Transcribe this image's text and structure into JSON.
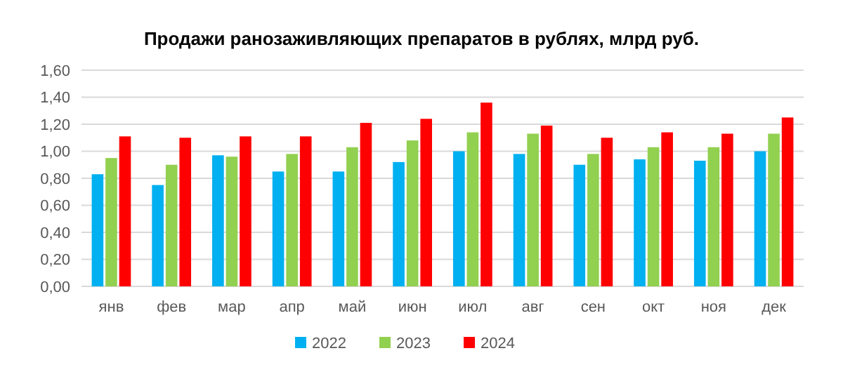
{
  "chart_data": {
    "type": "bar",
    "title": "Продажи ранозаживляющих препаратов в рублях, млрд руб.",
    "categories": [
      "янв",
      "фев",
      "мар",
      "апр",
      "май",
      "июн",
      "июл",
      "авг",
      "сен",
      "окт",
      "ноя",
      "дек"
    ],
    "series": [
      {
        "name": "2022",
        "color": "#00b0f0",
        "values": [
          0.83,
          0.75,
          0.97,
          0.85,
          0.85,
          0.92,
          1.0,
          0.98,
          0.9,
          0.94,
          0.93,
          1.0
        ]
      },
      {
        "name": "2023",
        "color": "#92d050",
        "values": [
          0.95,
          0.9,
          0.96,
          0.98,
          1.03,
          1.08,
          1.14,
          1.13,
          0.98,
          1.03,
          1.03,
          1.13
        ]
      },
      {
        "name": "2024",
        "color": "#ff0000",
        "values": [
          1.11,
          1.1,
          1.11,
          1.11,
          1.21,
          1.24,
          1.36,
          1.19,
          1.1,
          1.14,
          1.13,
          1.25
        ]
      }
    ],
    "ylim": [
      0,
      1.6
    ],
    "yticks": [
      {
        "value": 0,
        "label": "0,00"
      },
      {
        "value": 0.2,
        "label": "0,20"
      },
      {
        "value": 0.4,
        "label": "0,40"
      },
      {
        "value": 0.6,
        "label": "0,60"
      },
      {
        "value": 0.8,
        "label": "0,80"
      },
      {
        "value": 1,
        "label": "1,00"
      },
      {
        "value": 1.2,
        "label": "1,20"
      },
      {
        "value": 1.4,
        "label": "1,40"
      },
      {
        "value": 1.6,
        "label": "1,60"
      }
    ],
    "grid": "y",
    "legend": "bottom"
  }
}
